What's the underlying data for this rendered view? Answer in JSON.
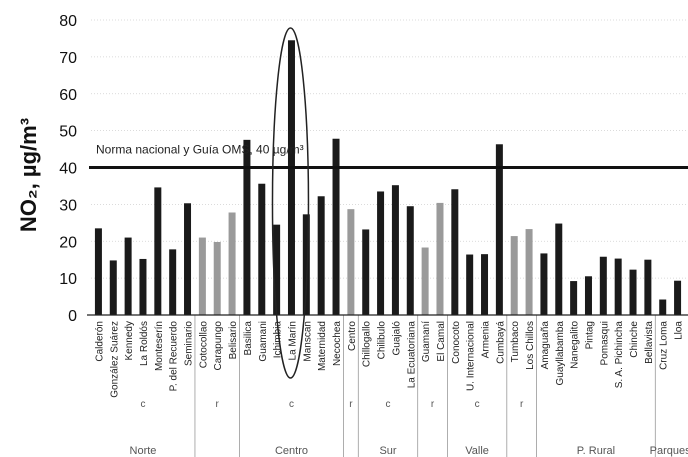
{
  "chart_data": {
    "type": "bar",
    "ylabel": "NO₂, µg/m³",
    "ylim": [
      0,
      80
    ],
    "yticks": [
      0,
      10,
      20,
      30,
      40,
      50,
      60,
      70,
      80
    ],
    "grid": true,
    "reference_line": {
      "label": "Norma nacional y Guía OMS, 40 µg/m³",
      "value": 40
    },
    "categories": [
      "Calderón",
      "González Suárez",
      "Kennedy",
      "La Roldós",
      "Monteserín",
      "P. del Recuerdo",
      "Seminario",
      "Cotocollao",
      "Carapungo",
      "Belisario",
      "Basilica",
      "Guamani",
      "Ichimbia",
      "La Marín",
      "Manscan",
      "Maternidad",
      "Necochea",
      "Centro",
      "Chillogallo",
      "Chilibulo",
      "Guajaló",
      "La Ecuatoriana",
      "Guamaní",
      "El Camal",
      "Conocoto",
      "U. Internacional",
      "Armenia",
      "Cumbayá",
      "Tumbaco",
      "Los Chillos",
      "Amaguaña",
      "Guayllabamba",
      "Nanegalito",
      "Pintag",
      "Pomasqui",
      "S. A. Pichincha",
      "Chinche",
      "Bellavista",
      "Cruz Loma",
      "Lloa"
    ],
    "values": [
      23.5,
      14.8,
      21,
      15.2,
      34.6,
      17.8,
      30.3,
      21,
      19.8,
      27.8,
      47.5,
      35.6,
      24.5,
      74.5,
      27.3,
      32.2,
      47.8,
      28.7,
      23.2,
      33.5,
      35.2,
      29.5,
      18.3,
      30.4,
      34.1,
      16.4,
      16.5,
      46.3,
      21.4,
      23.3,
      16.7,
      24.8,
      9.2,
      10.5,
      15.8,
      15.3,
      12.3,
      15,
      4.2,
      9.3
    ],
    "bar_tone": [
      "dark",
      "dark",
      "dark",
      "dark",
      "dark",
      "dark",
      "dark",
      "light",
      "light",
      "light",
      "dark",
      "dark",
      "dark",
      "dark",
      "dark",
      "dark",
      "dark",
      "light",
      "dark",
      "dark",
      "dark",
      "dark",
      "light",
      "light",
      "dark",
      "dark",
      "dark",
      "dark",
      "light",
      "light",
      "dark",
      "dark",
      "dark",
      "dark",
      "dark",
      "dark",
      "dark",
      "dark",
      "dark",
      "dark"
    ],
    "groups": [
      {
        "name": "Norte",
        "code": "c"
      },
      {
        "name": "",
        "code": "r"
      },
      {
        "name": "Centro",
        "code": "c"
      },
      {
        "name": "",
        "code": "r"
      },
      {
        "name": "Sur",
        "code": "c"
      },
      {
        "name": "",
        "code": "r"
      },
      {
        "name": "Valle",
        "code": "c"
      },
      {
        "name": "",
        "code": "r"
      },
      {
        "name": "P. Rural",
        "code": ""
      },
      {
        "name": "Parques",
        "code": ""
      }
    ],
    "highlighted_category": "La Marín",
    "colors": {
      "dark_bar": "#1a1a1a",
      "light_bar": "#9a9a9a",
      "reference": "#111111",
      "grid": "#cfcfcf"
    }
  }
}
